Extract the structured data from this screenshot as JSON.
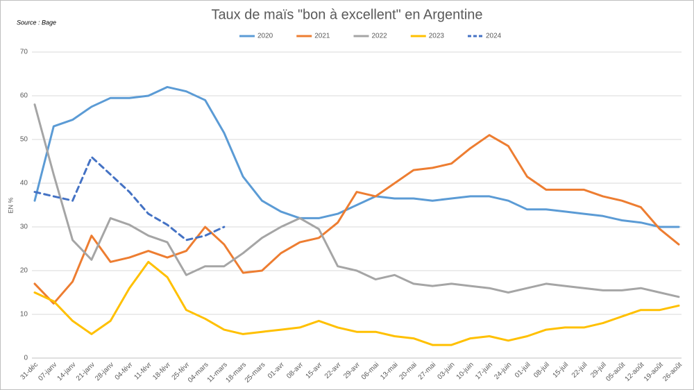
{
  "chart_data": {
    "type": "line",
    "title": "Taux de maïs \"bon à excellent\" en Argentine",
    "source": "Source : Bage",
    "ylabel": "EN %",
    "categories": [
      "31-déc",
      "07-janv",
      "14-janv",
      "21-janv",
      "28-janv",
      "04-févr",
      "11-févr",
      "18-févr",
      "25-févr",
      "04-mars",
      "11-mars",
      "18-mars",
      "25-mars",
      "01-avr",
      "08-avr",
      "15-avr",
      "22-avr",
      "29-avr",
      "06-mai",
      "13-mai",
      "20-mai",
      "27-mai",
      "03-juin",
      "10-juin",
      "17-juin",
      "24-juin",
      "01-juil",
      "08-juil",
      "15-juil",
      "22-juil",
      "29-juil",
      "05-août",
      "12-août",
      "19-août",
      "26-août"
    ],
    "series": [
      {
        "name": "2020",
        "color": "#5b9bd5",
        "dashed": false,
        "values": [
          36,
          53,
          54.5,
          57.5,
          59.5,
          59.5,
          60,
          62,
          61,
          59,
          51.5,
          41.5,
          36,
          33.5,
          32,
          32,
          33,
          35,
          37,
          36.5,
          36.5,
          36,
          36.5,
          37,
          37,
          36,
          34,
          34,
          33.5,
          33,
          32.5,
          31.5,
          31,
          30,
          30
        ]
      },
      {
        "name": "2021",
        "color": "#ed7d31",
        "dashed": false,
        "values": [
          17,
          12.5,
          17.5,
          28,
          22,
          23,
          24.5,
          23,
          24.5,
          30,
          26,
          19.5,
          20,
          24,
          26.5,
          27.5,
          31,
          38,
          37,
          40,
          43,
          43.5,
          44.5,
          48,
          51,
          48.5,
          41.5,
          38.5,
          38.5,
          38.5,
          37,
          36,
          34.5,
          29.5,
          26
        ]
      },
      {
        "name": "2022",
        "color": "#a5a5a5",
        "dashed": false,
        "values": [
          58,
          42,
          27,
          22.5,
          32,
          30.5,
          28,
          26.5,
          19,
          21,
          21,
          24,
          27.5,
          30,
          32,
          29.5,
          21,
          20,
          18,
          19,
          17,
          16.5,
          17,
          16.5,
          16,
          15,
          16,
          17,
          16.5,
          16,
          15.5,
          15.5,
          16,
          15,
          14
        ]
      },
      {
        "name": "2023",
        "color": "#ffc000",
        "dashed": false,
        "values": [
          15,
          13,
          8.5,
          5.5,
          8.5,
          16,
          22,
          18.5,
          11,
          9,
          6.5,
          5.5,
          6,
          6.5,
          7,
          8.5,
          7,
          6,
          6,
          5,
          4.5,
          3,
          3,
          4.5,
          5,
          4,
          5,
          6.5,
          7,
          7,
          8,
          9.5,
          11,
          11,
          12
        ]
      },
      {
        "name": "2024",
        "color": "#4472c4",
        "dashed": true,
        "values": [
          38,
          37,
          36,
          46,
          42,
          38,
          33,
          30.5,
          27,
          28,
          30,
          null,
          null,
          null,
          null,
          null,
          null,
          null,
          null,
          null,
          null,
          null,
          null,
          null,
          null,
          null,
          null,
          null,
          null,
          null,
          null,
          null,
          null,
          null,
          null
        ]
      }
    ],
    "ylim": [
      0,
      70
    ],
    "yticks": [
      0,
      10,
      20,
      30,
      40,
      50,
      60,
      70
    ],
    "grid": true,
    "legend": "top"
  }
}
